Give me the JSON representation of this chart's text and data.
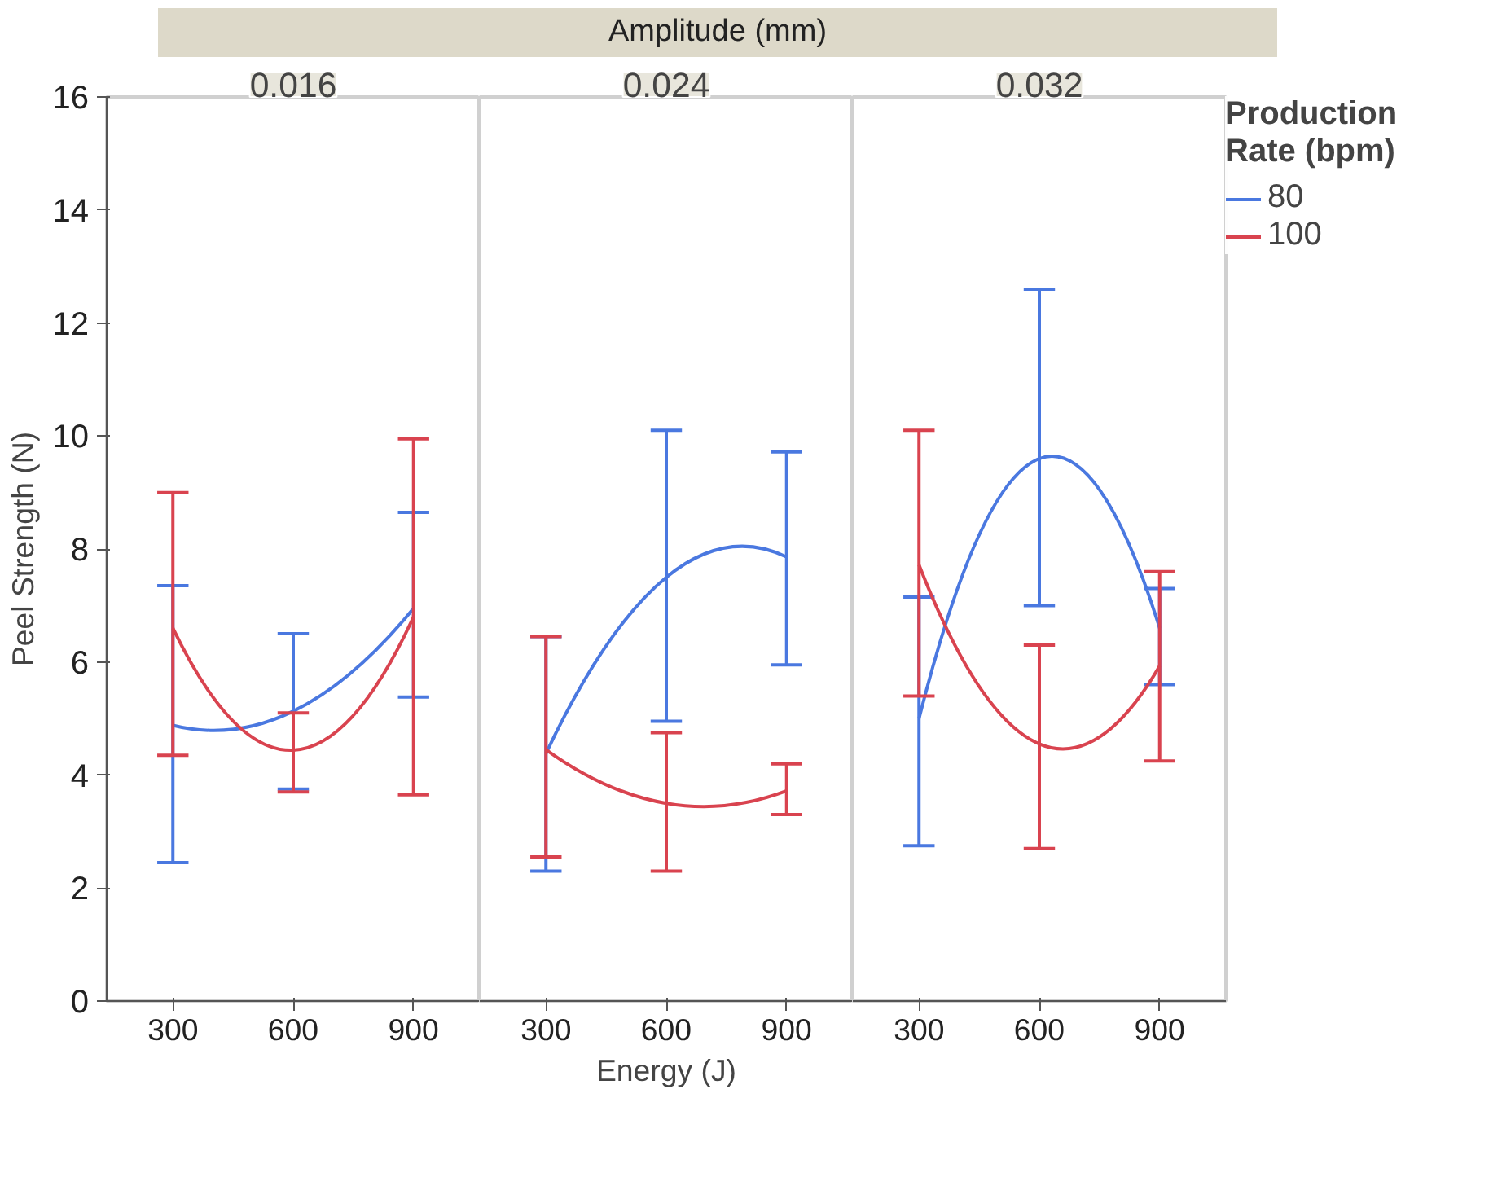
{
  "chart_data": [
    {
      "type": "line",
      "title": "0.016",
      "ylabel": "Peel Strength (N)",
      "annotations": [
        "Amplitude (mm)"
      ],
      "categories": [
        "300",
        "600",
        "900"
      ],
      "ylim": [
        0,
        16
      ],
      "yticks": [
        0,
        2,
        4,
        6,
        8,
        10,
        12,
        14,
        16
      ],
      "grid": false,
      "legend": false,
      "series": [
        {
          "color": "#4a78e0",
          "values": [
            4.88,
            5.13,
            6.95
          ],
          "errors": [
            [
              2.45,
              7.35
            ],
            [
              3.75,
              6.5
            ],
            [
              5.38,
              8.65
            ]
          ]
        },
        {
          "color": "#d9434f",
          "values": [
            6.6,
            4.44,
            6.8
          ],
          "errors": [
            [
              4.35,
              9.0
            ],
            [
              3.7,
              5.1
            ],
            [
              3.65,
              9.95
            ]
          ]
        }
      ]
    },
    {
      "type": "line",
      "title": "0.024",
      "xlabel": "Energy (J)",
      "categories": [
        "300",
        "600",
        "900"
      ],
      "ylim": [
        0,
        16
      ],
      "yticks": [
        0,
        2,
        4,
        6,
        8,
        10,
        12,
        14,
        16
      ],
      "tick_labels": "x",
      "grid": false,
      "legend": false,
      "series": [
        {
          "color": "#4a78e0",
          "values": [
            4.38,
            7.5,
            7.86
          ],
          "errors": [
            [
              2.3,
              6.45
            ],
            [
              4.95,
              10.1
            ],
            [
              5.95,
              9.72
            ]
          ]
        },
        {
          "color": "#d9434f",
          "values": [
            4.45,
            3.5,
            3.72
          ],
          "errors": [
            [
              2.55,
              6.45
            ],
            [
              2.3,
              4.75
            ],
            [
              3.3,
              4.2
            ]
          ]
        }
      ]
    },
    {
      "type": "line",
      "title": "0.032",
      "legend_title": "Production Rate (bpm)",
      "categories": [
        "300",
        "600",
        "900"
      ],
      "ylim": [
        0,
        16
      ],
      "yticks": [
        0,
        2,
        4,
        6,
        8,
        10,
        12,
        14,
        16
      ],
      "tick_labels": "x",
      "grid": false,
      "legend": "right",
      "series": [
        {
          "name": "80",
          "color": "#4a78e0",
          "values": [
            5.0,
            9.6,
            6.6
          ],
          "errors": [
            [
              2.75,
              7.15
            ],
            [
              7.0,
              12.6
            ],
            [
              5.6,
              7.3
            ]
          ]
        },
        {
          "name": "100",
          "color": "#d9434f",
          "values": [
            7.72,
            4.55,
            5.93
          ],
          "errors": [
            [
              5.4,
              10.1
            ],
            [
              2.7,
              6.3
            ],
            [
              4.25,
              7.6
            ]
          ]
        }
      ]
    }
  ]
}
